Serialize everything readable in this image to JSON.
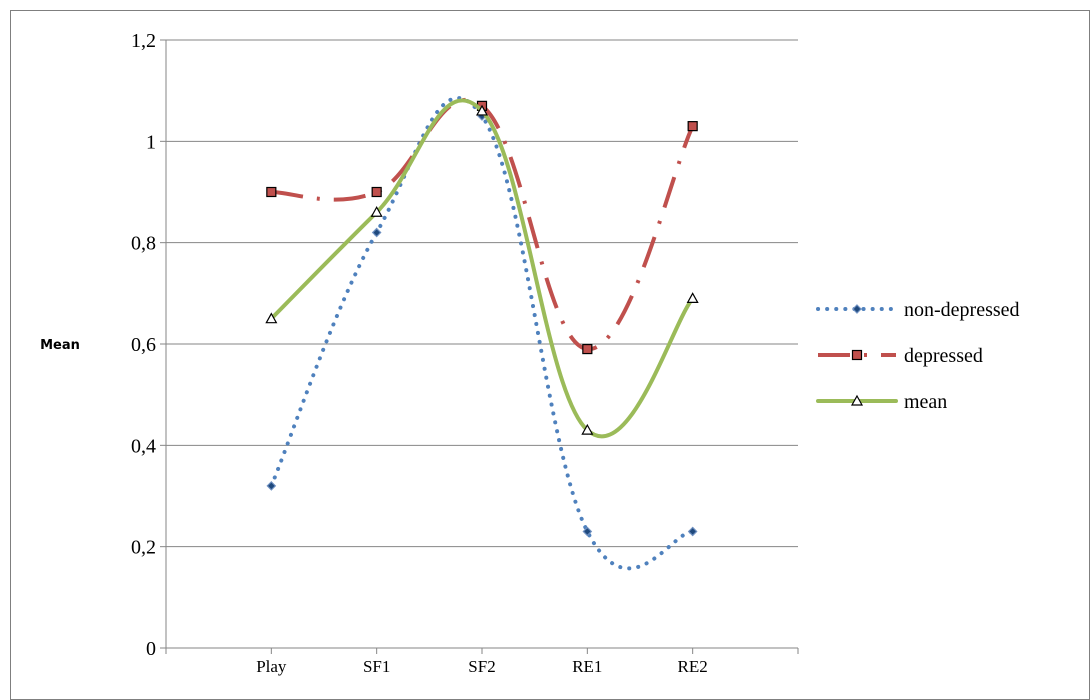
{
  "chart_data": {
    "type": "line",
    "title": "",
    "xlabel": "",
    "ylabel": "Mean",
    "categories": [
      "Play",
      "SF1",
      "SF2",
      "RE1",
      "RE2"
    ],
    "ylim": [
      0,
      1.2
    ],
    "yticks": [
      0,
      0.2,
      0.4,
      0.6,
      0.8,
      1,
      1.2
    ],
    "ytick_labels": [
      "0",
      "0,2",
      "0,4",
      "0,6",
      "0,8",
      "1",
      "1,2"
    ],
    "grid": true,
    "legend_position": "right",
    "smoothed": true,
    "series": [
      {
        "name": "non-depressed",
        "values": [
          0.32,
          0.82,
          1.05,
          0.23,
          0.23
        ],
        "color": "#4f81bd",
        "marker": "diamond",
        "line_style": "dotted"
      },
      {
        "name": "depressed",
        "values": [
          0.9,
          0.9,
          1.07,
          0.59,
          1.03
        ],
        "color": "#c0504d",
        "marker": "square",
        "line_style": "dash-dot"
      },
      {
        "name": "mean",
        "values": [
          0.65,
          0.86,
          1.06,
          0.43,
          0.69
        ],
        "color": "#9bbb59",
        "marker": "triangle",
        "line_style": "solid"
      }
    ]
  }
}
